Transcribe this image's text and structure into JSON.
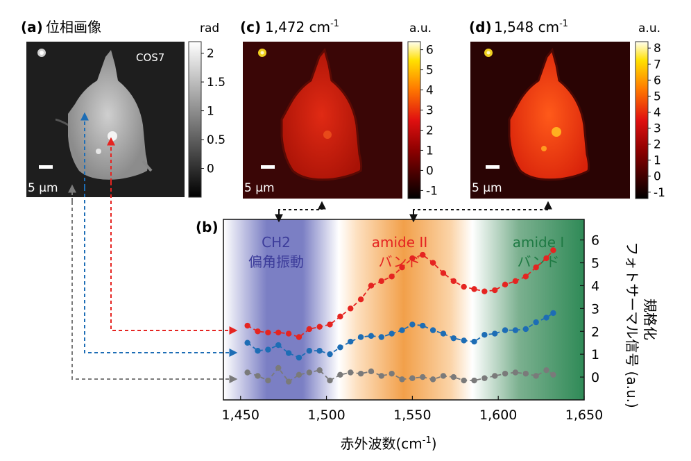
{
  "panel_a": {
    "label": "(a)",
    "title": "位相画像",
    "inset_label": "COS7",
    "scale_bar": "5 µm",
    "colorbar": {
      "unit": "rad",
      "ticks": [
        "2",
        "1.5",
        "1",
        "0.5",
        "0"
      ],
      "tick_values": [
        2,
        1.5,
        1,
        0.5,
        0
      ],
      "range": [
        -0.5,
        2.2
      ]
    }
  },
  "panel_c": {
    "label": "(c)",
    "title": "1,472 cm",
    "title_sup": "-1",
    "scale_bar": "5 µm",
    "colorbar": {
      "unit": "a.u.",
      "ticks": [
        "6",
        "5",
        "4",
        "3",
        "2",
        "1",
        "0",
        "-1"
      ],
      "tick_values": [
        6,
        5,
        4,
        3,
        2,
        1,
        0,
        -1
      ],
      "range": [
        -1.4,
        6.4
      ]
    }
  },
  "panel_d": {
    "label": "(d)",
    "title": "1,548 cm",
    "title_sup": "-1",
    "scale_bar": "5 µm",
    "colorbar": {
      "unit": "a.u.",
      "ticks": [
        "8",
        "7",
        "6",
        "5",
        "4",
        "3",
        "2",
        "1",
        "0",
        "-1"
      ],
      "tick_values": [
        8,
        7,
        6,
        5,
        4,
        3,
        2,
        1,
        0,
        -1
      ],
      "range": [
        -1.4,
        8.4
      ]
    }
  },
  "panel_b": {
    "label": "(b)",
    "band_ch2": {
      "line1": "CH2",
      "line2": "偏角振動"
    },
    "band_amide2": {
      "line1": "amide II",
      "line2": "バンド"
    },
    "band_amide1": {
      "line1": "amide I",
      "line2": "バンド"
    },
    "ylabel": "規格化\nフォトサーマル信号 (a.u.)",
    "ylabel_line1": "規格化",
    "ylabel_line2": "フォトサーマル信号 (a.u.)",
    "xlabel": "赤外波数(cm",
    "xlabel_sup": "-1",
    "xlabel_tail": ")"
  },
  "chart_data": {
    "type": "line",
    "xlim": [
      1440,
      1650
    ],
    "ylim": [
      -1,
      6.9
    ],
    "xticks": [
      1450,
      1500,
      1550,
      1600,
      1650
    ],
    "xtick_labels": [
      "1,450",
      "1,500",
      "1,550",
      "1,600",
      "1,650"
    ],
    "yticks": [
      0,
      1,
      2,
      3,
      4,
      5,
      6
    ],
    "ytick_labels": [
      "0",
      "1",
      "2",
      "3",
      "4",
      "5",
      "6"
    ],
    "grid": false,
    "series": [
      {
        "color": "#e52421",
        "marker": "red-dot",
        "x": [
          1454,
          1460,
          1466,
          1472,
          1478,
          1484,
          1490,
          1496,
          1502,
          1508,
          1514,
          1520,
          1526,
          1532,
          1538,
          1544,
          1550,
          1556,
          1562,
          1568,
          1574,
          1580,
          1586,
          1592,
          1598,
          1604,
          1610,
          1616,
          1622,
          1628,
          1632
        ],
        "y": [
          2.25,
          2.0,
          1.95,
          1.95,
          1.9,
          1.75,
          2.1,
          2.2,
          2.3,
          2.65,
          3.0,
          3.4,
          4.0,
          4.2,
          4.4,
          4.8,
          5.2,
          5.35,
          5.0,
          4.55,
          4.2,
          3.95,
          3.85,
          3.75,
          3.8,
          4.05,
          4.2,
          4.4,
          4.8,
          5.2,
          5.55
        ]
      },
      {
        "color": "#1d6db5",
        "marker": "blue-dot",
        "x": [
          1454,
          1460,
          1466,
          1472,
          1478,
          1484,
          1490,
          1496,
          1502,
          1508,
          1514,
          1520,
          1526,
          1532,
          1538,
          1544,
          1550,
          1556,
          1562,
          1568,
          1574,
          1580,
          1586,
          1592,
          1598,
          1604,
          1610,
          1616,
          1622,
          1628,
          1632
        ],
        "y": [
          1.5,
          1.15,
          1.2,
          1.4,
          1.05,
          0.85,
          1.15,
          1.15,
          1.0,
          1.3,
          1.55,
          1.75,
          1.8,
          1.75,
          1.9,
          2.05,
          2.3,
          2.25,
          2.05,
          1.9,
          1.7,
          1.6,
          1.55,
          1.85,
          1.9,
          2.05,
          2.05,
          2.1,
          2.4,
          2.6,
          2.8
        ]
      },
      {
        "color": "#7a7a7a",
        "marker": "gray-dot",
        "x": [
          1454,
          1460,
          1466,
          1472,
          1478,
          1484,
          1490,
          1496,
          1502,
          1508,
          1514,
          1520,
          1526,
          1532,
          1538,
          1544,
          1550,
          1556,
          1562,
          1568,
          1574,
          1580,
          1586,
          1592,
          1598,
          1604,
          1610,
          1616,
          1622,
          1628,
          1632
        ],
        "y": [
          0.2,
          0.05,
          -0.15,
          0.4,
          -0.2,
          0.1,
          0.2,
          0.3,
          -0.15,
          0.1,
          0.2,
          0.15,
          0.25,
          0.05,
          0.15,
          -0.1,
          -0.05,
          0.0,
          -0.1,
          0.05,
          0.0,
          -0.15,
          -0.15,
          -0.05,
          0.05,
          0.15,
          0.2,
          0.15,
          0.05,
          0.3,
          0.1
        ]
      }
    ]
  },
  "colors": {
    "red": "#e52421",
    "blue": "#1d6db5",
    "gray": "#7a7a7a",
    "ch2_band": "#7b7fc4",
    "amide2_band": "#f2a04a",
    "amide1_band": "#2f8a57",
    "ch2_text": "#3c3c9a",
    "amide2_text": "#e52421",
    "amide1_text": "#1f7a44"
  }
}
